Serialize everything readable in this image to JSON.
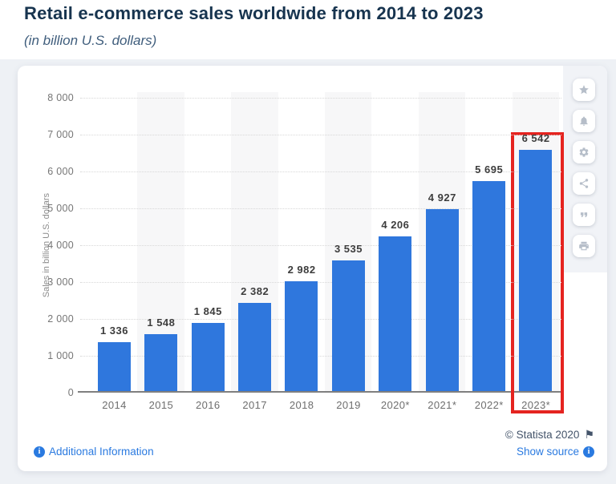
{
  "page": {
    "title": "Retail e-commerce sales worldwide from 2014 to 2023",
    "subtitle": "(in billion U.S. dollars)"
  },
  "chart_data": {
    "type": "bar",
    "title": "Retail e-commerce sales worldwide from 2014 to 2023",
    "subtitle": "(in billion U.S. dollars)",
    "categories": [
      "2014",
      "2015",
      "2016",
      "2017",
      "2018",
      "2019",
      "2020*",
      "2021*",
      "2022*",
      "2023*"
    ],
    "values": [
      1336,
      1548,
      1845,
      2382,
      2982,
      3535,
      4206,
      4927,
      5695,
      6542
    ],
    "value_labels": [
      "1 336",
      "1 548",
      "1 845",
      "2 382",
      "2 982",
      "3 535",
      "4 206",
      "4 927",
      "5 695",
      "6 542"
    ],
    "xlabel": "",
    "ylabel": "Sales in billion U.S. dollars",
    "ylim": [
      0,
      8000
    ],
    "ytick_step": 1000,
    "ytick_labels": [
      "0",
      "1 000",
      "2 000",
      "3 000",
      "4 000",
      "5 000",
      "6 000",
      "7 000",
      "8 000"
    ],
    "grid": true,
    "legend": false,
    "bar_color": "#2f77dd",
    "band_color": "#f7f7f8",
    "highlighted_category": "2023*",
    "highlight_box_color": "#e52420"
  },
  "toolbar": {
    "buttons": [
      {
        "name": "favorite-button",
        "icon": "star"
      },
      {
        "name": "notifications-button",
        "icon": "bell"
      },
      {
        "name": "settings-button",
        "icon": "gear"
      },
      {
        "name": "share-button",
        "icon": "share"
      },
      {
        "name": "cite-button",
        "icon": "quote"
      },
      {
        "name": "print-button",
        "icon": "print"
      }
    ]
  },
  "footer": {
    "copyright": "© Statista 2020",
    "additional_info": "Additional Information",
    "show_source": "Show source"
  },
  "colors": {
    "title_text": "#17344f",
    "subtitle_text": "#3f5d7c",
    "link_blue": "#2a7ae0",
    "page_background": "#eef1f5",
    "card_background": "#ffffff"
  }
}
